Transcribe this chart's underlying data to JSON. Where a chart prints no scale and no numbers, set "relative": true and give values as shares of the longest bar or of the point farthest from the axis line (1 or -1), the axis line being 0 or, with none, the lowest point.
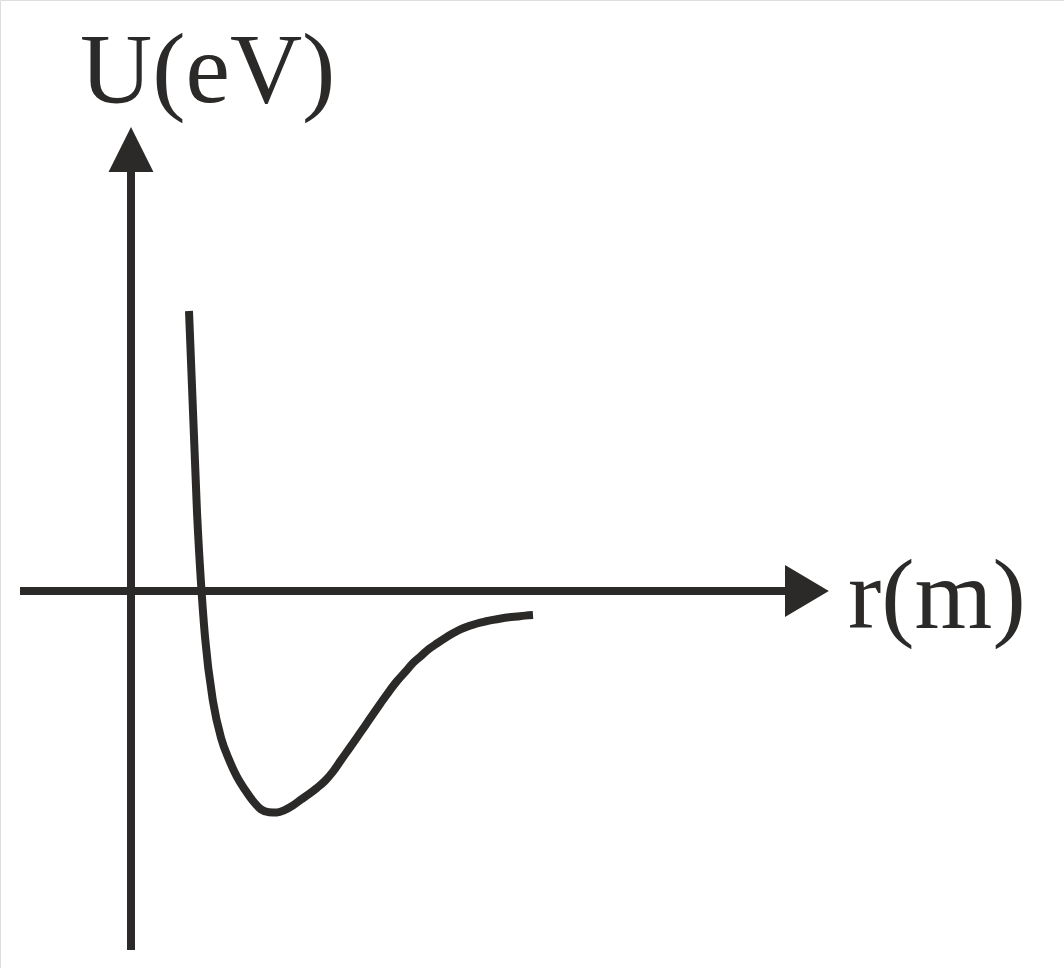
{
  "chart_data": {
    "type": "line",
    "xlabel": "r(m)",
    "ylabel": "U(eV)",
    "relative": true,
    "categories": [
      null,
      null,
      null,
      null,
      null,
      null,
      null,
      null,
      null,
      null,
      null,
      null,
      null,
      null,
      null,
      null,
      null,
      null,
      null,
      null,
      null,
      null,
      null,
      null,
      null,
      null,
      null,
      null,
      null,
      null,
      null,
      null,
      null,
      null,
      null,
      null,
      null,
      null,
      null,
      null,
      null,
      null,
      null,
      null
    ],
    "series": [
      {
        "color": "#2b2a29",
        "values": [
          1.0,
          0.282,
          -0.164,
          -0.394,
          -0.524,
          -0.602,
          -0.664,
          -0.71,
          -0.75,
          -0.78,
          -0.79,
          -0.791,
          -0.782,
          -0.766,
          -0.745,
          -0.725,
          -0.703,
          -0.678,
          -0.645,
          -0.604,
          -0.564,
          -0.523,
          -0.482,
          -0.44,
          -0.399,
          -0.359,
          -0.322,
          -0.29,
          -0.257,
          -0.232,
          -0.207,
          -0.187,
          -0.168,
          -0.151,
          -0.136,
          -0.125,
          -0.116,
          -0.109,
          -0.103,
          -0.098,
          -0.094,
          -0.091,
          -0.088,
          -0.086
        ]
      }
    ]
  }
}
